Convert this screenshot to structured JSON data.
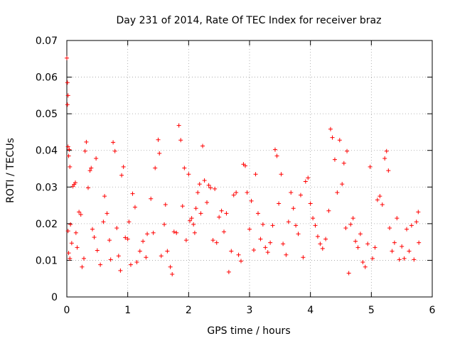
{
  "chart_data": {
    "type": "scatter",
    "title": "Day 231 of 2014, Rate Of TEC Index for receiver braz",
    "xlabel": "GPS time / hours",
    "ylabel": "ROTI / TECUs",
    "xlim": [
      0,
      6
    ],
    "ylim": [
      0,
      0.07
    ],
    "x_ticks": [
      0,
      1,
      2,
      3,
      4,
      5,
      6
    ],
    "x_tick_labels": [
      "0",
      "1",
      "2",
      "3",
      "4",
      "5",
      "6"
    ],
    "y_ticks": [
      0,
      0.01,
      0.02,
      0.03,
      0.04,
      0.05,
      0.06,
      0.07
    ],
    "y_tick_labels": [
      "0",
      "0.01",
      "0.02",
      "0.03",
      "0.04",
      "0.05",
      "0.06",
      "0.07"
    ],
    "grid": true,
    "marker": "+",
    "series_color": "#ff0000",
    "series": [
      {
        "name": "ROTI",
        "points": [
          [
            0.0,
            0.0652
          ],
          [
            0.01,
            0.0585
          ],
          [
            0.02,
            0.055
          ],
          [
            0.01,
            0.0525
          ],
          [
            0.02,
            0.041
          ],
          [
            0.03,
            0.0385
          ],
          [
            0.04,
            0.0402
          ],
          [
            0.05,
            0.0355
          ],
          [
            0.02,
            0.018
          ],
          [
            0.03,
            0.012
          ],
          [
            0.05,
            0.0105
          ],
          [
            0.06,
            0.0198
          ],
          [
            0.08,
            0.0147
          ],
          [
            0.1,
            0.0302
          ],
          [
            0.12,
            0.0307
          ],
          [
            0.14,
            0.0312
          ],
          [
            0.15,
            0.0175
          ],
          [
            0.17,
            0.0135
          ],
          [
            0.2,
            0.0232
          ],
          [
            0.23,
            0.0225
          ],
          [
            0.25,
            0.0082
          ],
          [
            0.28,
            0.0105
          ],
          [
            0.3,
            0.0398
          ],
          [
            0.32,
            0.0423
          ],
          [
            0.35,
            0.0298
          ],
          [
            0.38,
            0.0345
          ],
          [
            0.4,
            0.0352
          ],
          [
            0.42,
            0.0185
          ],
          [
            0.45,
            0.0163
          ],
          [
            0.48,
            0.0378
          ],
          [
            0.5,
            0.0127
          ],
          [
            0.55,
            0.0088
          ],
          [
            0.6,
            0.0205
          ],
          [
            0.62,
            0.0275
          ],
          [
            0.66,
            0.0228
          ],
          [
            0.7,
            0.0155
          ],
          [
            0.72,
            0.0102
          ],
          [
            0.76,
            0.0422
          ],
          [
            0.79,
            0.0398
          ],
          [
            0.82,
            0.0188
          ],
          [
            0.85,
            0.0112
          ],
          [
            0.88,
            0.0072
          ],
          [
            0.9,
            0.0332
          ],
          [
            0.93,
            0.0355
          ],
          [
            0.96,
            0.0162
          ],
          [
            1.0,
            0.0158
          ],
          [
            1.02,
            0.0205
          ],
          [
            1.05,
            0.0088
          ],
          [
            1.08,
            0.0282
          ],
          [
            1.12,
            0.0245
          ],
          [
            1.15,
            0.0095
          ],
          [
            1.2,
            0.0125
          ],
          [
            1.25,
            0.0152
          ],
          [
            1.3,
            0.0108
          ],
          [
            1.32,
            0.0172
          ],
          [
            1.38,
            0.0268
          ],
          [
            1.42,
            0.0175
          ],
          [
            1.45,
            0.0352
          ],
          [
            1.5,
            0.0429
          ],
          [
            1.52,
            0.0392
          ],
          [
            1.55,
            0.0112
          ],
          [
            1.6,
            0.0198
          ],
          [
            1.62,
            0.0252
          ],
          [
            1.65,
            0.0125
          ],
          [
            1.7,
            0.0082
          ],
          [
            1.73,
            0.0062
          ],
          [
            1.76,
            0.0178
          ],
          [
            1.8,
            0.0175
          ],
          [
            1.84,
            0.0468
          ],
          [
            1.87,
            0.0428
          ],
          [
            1.9,
            0.0248
          ],
          [
            1.93,
            0.0352
          ],
          [
            1.96,
            0.0155
          ],
          [
            2.0,
            0.0335
          ],
          [
            2.02,
            0.0208
          ],
          [
            2.05,
            0.0215
          ],
          [
            2.08,
            0.0198
          ],
          [
            2.1,
            0.0175
          ],
          [
            2.12,
            0.0242
          ],
          [
            2.15,
            0.0285
          ],
          [
            2.18,
            0.0308
          ],
          [
            2.2,
            0.0228
          ],
          [
            2.23,
            0.0412
          ],
          [
            2.26,
            0.0318
          ],
          [
            2.3,
            0.0258
          ],
          [
            2.33,
            0.0305
          ],
          [
            2.36,
            0.0298
          ],
          [
            2.4,
            0.0155
          ],
          [
            2.43,
            0.0295
          ],
          [
            2.46,
            0.0148
          ],
          [
            2.5,
            0.0218
          ],
          [
            2.54,
            0.0235
          ],
          [
            2.58,
            0.0178
          ],
          [
            2.62,
            0.0228
          ],
          [
            2.66,
            0.0068
          ],
          [
            2.7,
            0.0125
          ],
          [
            2.74,
            0.0278
          ],
          [
            2.78,
            0.0285
          ],
          [
            2.82,
            0.0115
          ],
          [
            2.86,
            0.0098
          ],
          [
            2.9,
            0.0362
          ],
          [
            2.93,
            0.0358
          ],
          [
            2.96,
            0.0285
          ],
          [
            3.0,
            0.0185
          ],
          [
            3.03,
            0.0262
          ],
          [
            3.07,
            0.0128
          ],
          [
            3.1,
            0.0335
          ],
          [
            3.14,
            0.0228
          ],
          [
            3.18,
            0.0158
          ],
          [
            3.22,
            0.0198
          ],
          [
            3.26,
            0.0135
          ],
          [
            3.3,
            0.0122
          ],
          [
            3.34,
            0.0148
          ],
          [
            3.38,
            0.0195
          ],
          [
            3.42,
            0.0402
          ],
          [
            3.45,
            0.0385
          ],
          [
            3.48,
            0.0255
          ],
          [
            3.52,
            0.0335
          ],
          [
            3.55,
            0.0145
          ],
          [
            3.6,
            0.0115
          ],
          [
            3.64,
            0.0205
          ],
          [
            3.68,
            0.0285
          ],
          [
            3.72,
            0.0242
          ],
          [
            3.76,
            0.0195
          ],
          [
            3.8,
            0.0172
          ],
          [
            3.84,
            0.0278
          ],
          [
            3.88,
            0.0108
          ],
          [
            3.92,
            0.0315
          ],
          [
            3.96,
            0.0325
          ],
          [
            4.0,
            0.0255
          ],
          [
            4.04,
            0.0215
          ],
          [
            4.08,
            0.0195
          ],
          [
            4.12,
            0.0165
          ],
          [
            4.16,
            0.0145
          ],
          [
            4.2,
            0.0132
          ],
          [
            4.25,
            0.0158
          ],
          [
            4.3,
            0.0235
          ],
          [
            4.33,
            0.0458
          ],
          [
            4.36,
            0.0435
          ],
          [
            4.4,
            0.0375
          ],
          [
            4.44,
            0.0285
          ],
          [
            4.48,
            0.0428
          ],
          [
            4.52,
            0.0308
          ],
          [
            4.55,
            0.0365
          ],
          [
            4.58,
            0.0188
          ],
          [
            4.6,
            0.0398
          ],
          [
            4.63,
            0.0065
          ],
          [
            4.66,
            0.0198
          ],
          [
            4.7,
            0.0215
          ],
          [
            4.74,
            0.0152
          ],
          [
            4.78,
            0.0135
          ],
          [
            4.82,
            0.0172
          ],
          [
            4.86,
            0.0095
          ],
          [
            4.9,
            0.0082
          ],
          [
            4.94,
            0.0145
          ],
          [
            4.98,
            0.0355
          ],
          [
            5.02,
            0.0105
          ],
          [
            5.06,
            0.0135
          ],
          [
            5.1,
            0.0265
          ],
          [
            5.14,
            0.0275
          ],
          [
            5.18,
            0.0252
          ],
          [
            5.22,
            0.0378
          ],
          [
            5.25,
            0.0398
          ],
          [
            5.28,
            0.0345
          ],
          [
            5.3,
            0.0188
          ],
          [
            5.34,
            0.0125
          ],
          [
            5.38,
            0.0148
          ],
          [
            5.42,
            0.0215
          ],
          [
            5.46,
            0.0102
          ],
          [
            5.5,
            0.0138
          ],
          [
            5.54,
            0.0105
          ],
          [
            5.58,
            0.0185
          ],
          [
            5.62,
            0.0125
          ],
          [
            5.66,
            0.0195
          ],
          [
            5.7,
            0.0102
          ],
          [
            5.74,
            0.0205
          ],
          [
            5.77,
            0.0232
          ],
          [
            5.78,
            0.0148
          ]
        ]
      }
    ]
  }
}
